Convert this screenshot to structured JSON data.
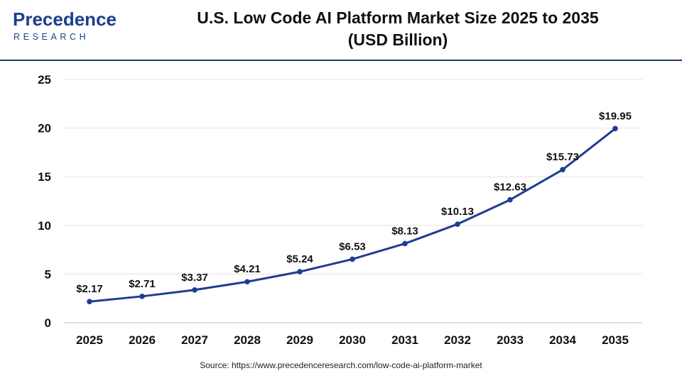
{
  "header": {
    "logo_top": "Precedence",
    "logo_bottom": "RESEARCH",
    "title_line1": "U.S. Low Code AI Platform Market Size 2025 to 2035",
    "title_line2": "(USD Billion)"
  },
  "colors": {
    "line": "#1f3d91",
    "marker": "#1f3d91",
    "grid": "#e3e3e3",
    "text": "#111111",
    "brand": "#1c3f8c"
  },
  "chart_data": {
    "type": "line",
    "title": "U.S. Low Code AI Platform Market Size 2025 to 2035 (USD Billion)",
    "xlabel": "",
    "ylabel": "",
    "categories": [
      "2025",
      "2026",
      "2027",
      "2028",
      "2029",
      "2030",
      "2031",
      "2032",
      "2033",
      "2034",
      "2035"
    ],
    "values": [
      2.17,
      2.71,
      3.37,
      4.21,
      5.24,
      6.53,
      8.13,
      10.13,
      12.63,
      15.73,
      19.95
    ],
    "data_labels": [
      "$2.17",
      "$2.71",
      "$3.37",
      "$4.21",
      "$5.24",
      "$6.53",
      "$8.13",
      "$10.13",
      "$12.63",
      "$15.73",
      "$19.95"
    ],
    "ylim": [
      0,
      25
    ],
    "yticks": [
      "0",
      "5",
      "10",
      "15",
      "20",
      "25"
    ],
    "grid": true,
    "legend": "none"
  },
  "footer": {
    "source": "Source: https://www.precedenceresearch.com/low-code-ai-platform-market"
  }
}
